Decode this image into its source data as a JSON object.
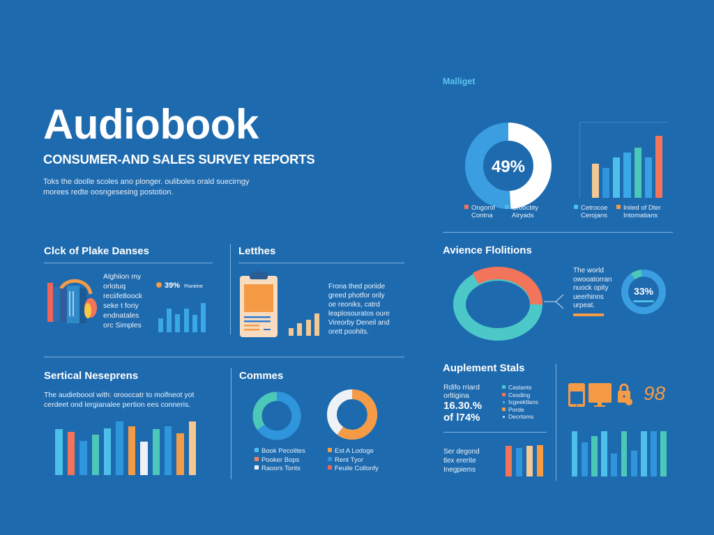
{
  "header": {
    "title": "Audiobook",
    "subtitle": "CONSUMER-AND SALES SURVEY REPORTS",
    "description": "Toks the doolle scoles ano plonger. ouliboles orald suecirngy morees redte oosngesesing postotion."
  },
  "top_right": {
    "label": "Malliget",
    "donut": {
      "center_label": "49%",
      "value_pct": 49,
      "colors": {
        "segment": "#ffffff",
        "rest": "#3a9ee0"
      }
    },
    "donut_legend": [
      {
        "label_line1": "Ongorol",
        "label_line2": "Contna",
        "color": "#f2745a"
      },
      {
        "label_line1": "Croocbty",
        "label_line2": "Alryads",
        "color": "#4cb8e6"
      }
    ],
    "bar_legend": [
      {
        "label_line1": "Cetrocoe",
        "label_line2": "Cerojans",
        "color": "#4cc0ea"
      },
      {
        "label_line1": "Iniied of Dter",
        "label_line2": "Intomatians",
        "color": "#f59b46"
      }
    ]
  },
  "sections": {
    "clck": {
      "title": "Clck of Plake Danses",
      "text_lines": [
        "Alghiion my",
        "orlotuq",
        "reciife8oock",
        "seke t foriy",
        "endnatales",
        "orc Simples"
      ],
      "stat_value": "39%",
      "stat_label": "Pisneine",
      "stat_dot_color": "#f59b46"
    },
    "letthes": {
      "title": "Letthes",
      "text_lines": [
        "Frona thed poriide",
        "greed photfor orily",
        "oe reoniks, catrd",
        "leaplosouratos oure",
        "Vireorby Deneil and",
        "orett poohits."
      ]
    },
    "audience": {
      "title": "Avience Flolitions",
      "text_lines": [
        "The world",
        "owooatorran",
        "nuock opity",
        "ueerhinns",
        "urpeat."
      ],
      "ring_label": "33%",
      "ring_value_pct": 33
    },
    "sertical": {
      "title": "Sertical Neseprens",
      "text": "The audieboool with: orooccatr to molfneot yot cerdeet ond lergianalee pertion ees conneris."
    },
    "commes": {
      "title": "Commes",
      "legend_left": [
        {
          "label": "Book Pecolites",
          "color": "#4cc0ea"
        },
        {
          "label": "Pooker Bops",
          "color": "#f2845a"
        },
        {
          "label": "Raoors Tonts",
          "color": "#f0f0f4"
        }
      ],
      "legend_right": [
        {
          "label": "Est A Lodoge",
          "color": "#f59b46"
        },
        {
          "label": "Rent Tyor",
          "color": "#2f95dd"
        },
        {
          "label": "Feuile Collonfy",
          "color": "#f2645a"
        }
      ]
    },
    "auplement": {
      "title": "Auplement Stals",
      "text_lines": [
        "Rdifo rriard",
        "orltigina"
      ],
      "stat_line1": "16.30.%",
      "stat_line2": "of l74%",
      "legend": [
        {
          "label": "Castants",
          "color": "#4cc8d8"
        },
        {
          "label": "Cesding",
          "color": "#f2745a"
        },
        {
          "label": "Ixgeektlans",
          "color": "#4cb8e6"
        },
        {
          "label": "Porde",
          "color": "#f59b46"
        },
        {
          "label": "Decrtoms",
          "color": "#a8d8f0"
        }
      ],
      "bottom_text_lines": [
        "Ser degond",
        "tlex ererite",
        "Inegpiems"
      ],
      "devices_number": "98"
    }
  },
  "chart_data": [
    {
      "id": "top-donut",
      "type": "pie",
      "title": "Malliget",
      "values": [
        49,
        51
      ],
      "labels": [
        "Ongorol Contna",
        "Croocbty Alryads"
      ],
      "center_label": "49%"
    },
    {
      "id": "top-bars",
      "type": "bar",
      "categories": [
        "1",
        "2",
        "3",
        "4",
        "5",
        "6",
        "7"
      ],
      "values": [
        34,
        30,
        40,
        45,
        50,
        40,
        62
      ],
      "colors": [
        "#f4c893",
        "#2f95dd",
        "#4cc0ea",
        "#3aa8e6",
        "#4cc8b8",
        "#3aa0e4",
        "#f2745a"
      ],
      "ylim": [
        0,
        75
      ],
      "grid": true
    },
    {
      "id": "clck-bars",
      "type": "bar",
      "categories": [
        "1",
        "2",
        "3",
        "4",
        "5",
        "6"
      ],
      "values": [
        38,
        65,
        50,
        65,
        48,
        80
      ],
      "colors": [
        "#3aa8e6",
        "#3aa8e6",
        "#3aa8e6",
        "#3aa8e6",
        "#3aa8e6",
        "#3aa8e6"
      ],
      "ylim": [
        0,
        100
      ]
    },
    {
      "id": "letthes-bars",
      "type": "bar",
      "categories": [
        "1",
        "2",
        "3",
        "4"
      ],
      "values": [
        25,
        40,
        50,
        70
      ],
      "colors": [
        "#f4c893",
        "#f4c893",
        "#f4c893",
        "#f4c893"
      ],
      "ylim": [
        0,
        100
      ]
    },
    {
      "id": "audience-ring",
      "type": "pie",
      "values": [
        35,
        65
      ],
      "labels": [
        "segment-a",
        "segment-b"
      ],
      "colors": [
        "#f2745a",
        "#4cc8c8"
      ]
    },
    {
      "id": "audience-small-ring",
      "type": "pie",
      "values": [
        33,
        67
      ],
      "center_label": "33%"
    },
    {
      "id": "sertical-bars",
      "type": "bar",
      "categories": [
        "1",
        "2",
        "3",
        "4",
        "5",
        "6",
        "7",
        "8",
        "9",
        "10",
        "11",
        "12",
        "13"
      ],
      "values": [
        66,
        62,
        49,
        58,
        67,
        77,
        70,
        48,
        66,
        70,
        60,
        77,
        0
      ],
      "colors": [
        "#4cc0ea",
        "#f2745a",
        "#2f95dd",
        "#4cc8b8",
        "#4cc0ea",
        "#2f95dd",
        "#f59b46",
        "#eef2f7",
        "#4cc8b8",
        "#2f95dd",
        "#f59b46",
        "#f4c893",
        "#f4c893"
      ],
      "ylim": [
        0,
        80
      ]
    },
    {
      "id": "commes-donut-left",
      "type": "pie",
      "values": [
        65,
        35
      ],
      "colors": [
        "#2f95dd",
        "#4cc8b8"
      ]
    },
    {
      "id": "commes-donut-right",
      "type": "pie",
      "values": [
        60,
        40
      ],
      "colors": [
        "#f59b46",
        "#eef2f7"
      ]
    },
    {
      "id": "auplement-bars",
      "type": "bar",
      "categories": [
        "1",
        "2",
        "3",
        "4"
      ],
      "values": [
        70,
        65,
        70,
        72
      ],
      "colors": [
        "#f2745a",
        "#2f95dd",
        "#f4c893",
        "#f59b46"
      ],
      "ylim": [
        0,
        80
      ]
    },
    {
      "id": "devices-bars",
      "type": "bar",
      "categories": [
        "1",
        "2",
        "3",
        "4",
        "5",
        "6",
        "7",
        "8",
        "9",
        "10"
      ],
      "values": [
        70,
        52,
        62,
        70,
        35,
        70,
        40,
        70,
        70,
        70
      ],
      "colors": [
        "#4cc0ea",
        "#2f95dd",
        "#4cc8b8",
        "#4cc0ea",
        "#2f95dd",
        "#4cc8b8",
        "#2f95dd",
        "#4cc0ea",
        "#2f95dd",
        "#4cc8b8"
      ],
      "ylim": [
        0,
        75
      ]
    }
  ]
}
